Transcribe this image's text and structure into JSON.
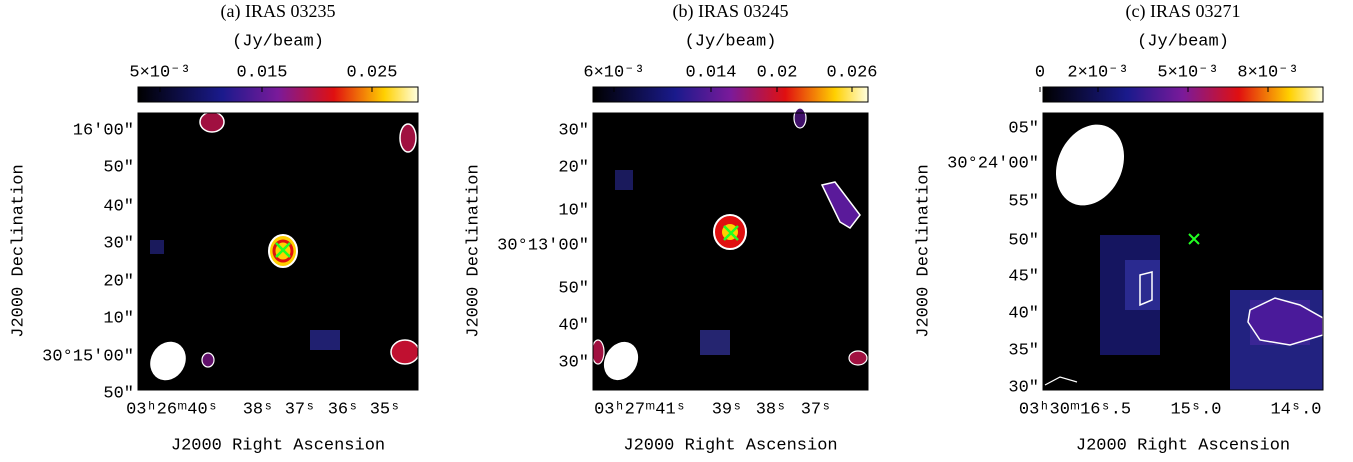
{
  "panels": [
    {
      "title": "(a) IRAS 03235",
      "unit": "(Jy/beam)",
      "colorbar_ticks": [
        "5×10⁻³",
        "0.015",
        "0.025"
      ],
      "y_ticks": [
        "16′00″",
        "50″",
        "40″",
        "30″",
        "20″",
        "10″",
        "30°15′00″",
        "50″"
      ],
      "x_ticks": [
        "03ʰ26ᵐ40ˢ",
        "38ˢ",
        "37ˢ",
        "36ˢ",
        "35ˢ"
      ],
      "y_label": "J2000 Declination",
      "x_label": "J2000 Right Ascension"
    },
    {
      "title": "(b) IRAS 03245",
      "unit": "(Jy/beam)",
      "colorbar_ticks": [
        "6×10⁻³",
        "0.014",
        "0.02",
        "0.026"
      ],
      "y_ticks": [
        "30″",
        "20″",
        "10″",
        "30°13′00″",
        "50″",
        "40″",
        "30″"
      ],
      "x_ticks": [
        "03ʰ27ᵐ41ˢ",
        "39ˢ",
        "38ˢ",
        "37ˢ"
      ],
      "y_label": "J2000 Declination",
      "x_label": "J2000 Right Ascension"
    },
    {
      "title": "(c) IRAS 03271",
      "unit": "(Jy/beam)",
      "colorbar_ticks": [
        "0",
        "2×10⁻³",
        "5×10⁻³",
        "8×10⁻³"
      ],
      "y_ticks": [
        "05″",
        "30°24′00″",
        "55″",
        "50″",
        "45″",
        "40″",
        "35″",
        "30″"
      ],
      "x_ticks": [
        "03ʰ30ᵐ16ˢ.5",
        "15ˢ.0",
        "14ˢ.0"
      ],
      "y_label": "J2000 Declination",
      "x_label": "J2000 Right Ascension"
    }
  ]
}
